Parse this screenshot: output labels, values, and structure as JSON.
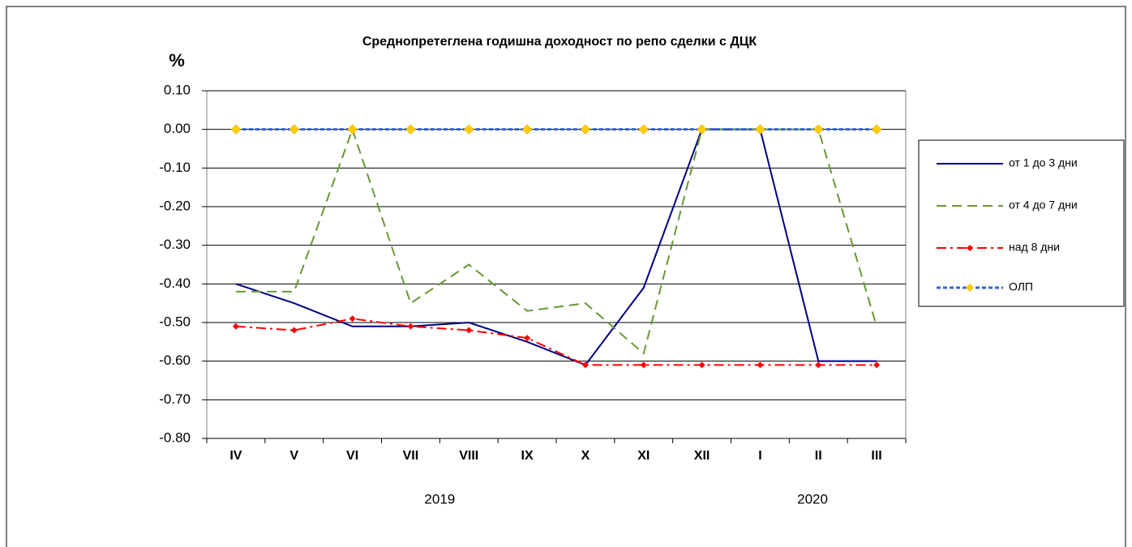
{
  "chart_data": {
    "type": "line",
    "title": "Среднопретеглена годишна доходност по репо сделки с ДЦК",
    "y_label": "%",
    "categories": [
      "IV",
      "V",
      "VI",
      "VII",
      "VIII",
      "IX",
      "X",
      "XI",
      "XII",
      "I",
      "II",
      "III"
    ],
    "year_labels": [
      "2019",
      "2020"
    ],
    "ylim": [
      -0.8,
      0.1
    ],
    "yticks": [
      {
        "value": -0.8,
        "label": "-0.80"
      },
      {
        "value": -0.7,
        "label": "-0.70"
      },
      {
        "value": -0.6,
        "label": "-0.60"
      },
      {
        "value": -0.5,
        "label": "-0.50"
      },
      {
        "value": -0.4,
        "label": "-0.40"
      },
      {
        "value": -0.3,
        "label": "-0.30"
      },
      {
        "value": -0.2,
        "label": "-0.20"
      },
      {
        "value": -0.1,
        "label": "-0.10"
      },
      {
        "value": 0,
        "label": "0.00"
      },
      {
        "value": 0.1,
        "label": "0.10"
      }
    ],
    "grid": true,
    "legend": "right",
    "series": [
      {
        "name": "от 1 до 3 дни",
        "color": "#000080",
        "style": "solid",
        "values": [
          -0.4,
          -0.45,
          -0.51,
          -0.51,
          -0.5,
          -0.55,
          -0.61,
          -0.41,
          0.0,
          0.0,
          -0.6,
          -0.6
        ]
      },
      {
        "name": "от 4 до 7 дни",
        "color": "#669933",
        "style": "dashed",
        "values": [
          -0.42,
          -0.42,
          0.0,
          -0.45,
          -0.35,
          -0.47,
          -0.45,
          -0.58,
          0.0,
          0.0,
          0.0,
          -0.51
        ]
      },
      {
        "name": "над 8 дни",
        "color": "#ff0000",
        "style": "dashdot",
        "marker": "diamond",
        "marker_color": "#ff0000",
        "values": [
          -0.51,
          -0.52,
          -0.49,
          -0.51,
          -0.52,
          -0.54,
          -0.61,
          -0.61,
          -0.61,
          -0.61,
          -0.61,
          -0.61
        ]
      },
      {
        "name": "ОЛП",
        "color": "#3366cc",
        "style": "dotted",
        "marker": "diamond",
        "marker_color": "#ffcc00",
        "values": [
          0,
          0,
          0,
          0,
          0,
          0,
          0,
          0,
          0,
          0,
          0,
          0
        ]
      }
    ]
  }
}
